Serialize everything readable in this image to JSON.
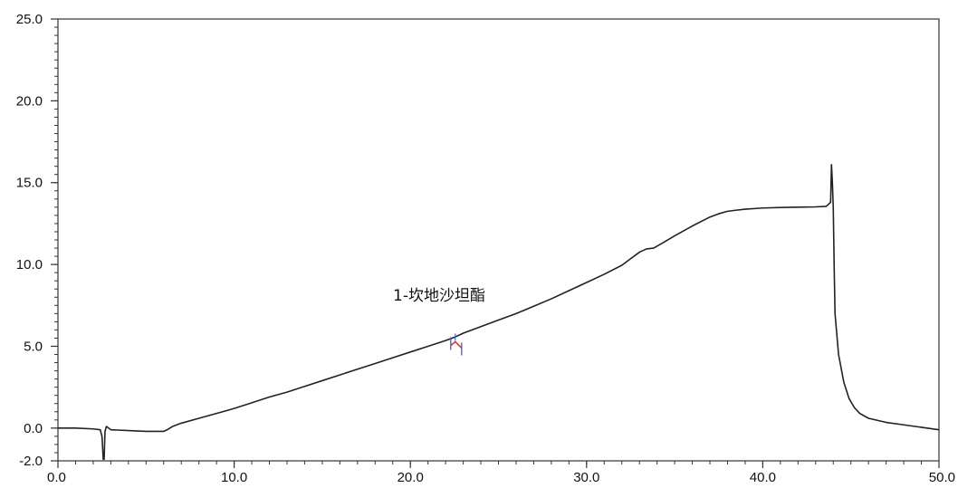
{
  "chart_data": {
    "type": "line",
    "title": "",
    "xlabel": "",
    "ylabel": "",
    "xlim": [
      0,
      50
    ],
    "ylim": [
      -2,
      25
    ],
    "grid": false,
    "x_ticks": [
      "0.0",
      "10.0",
      "20.0",
      "30.0",
      "40.0",
      "50.0"
    ],
    "y_ticks": [
      "-2.0",
      "0.0",
      "5.0",
      "10.0",
      "15.0",
      "20.0",
      "25.0"
    ],
    "annotations": [
      {
        "text": "1-坎地沙坦酯",
        "x": 22.6,
        "y": 5.0
      }
    ],
    "series": [
      {
        "color": "#222222",
        "x": [
          0.0,
          1.0,
          2.0,
          2.4,
          2.5,
          2.57,
          2.62,
          2.67,
          2.75,
          3.0,
          4.0,
          5.0,
          6.0,
          6.2,
          6.5,
          7.0,
          8.0,
          9.0,
          10.0,
          11.0,
          12.0,
          13.0,
          14.0,
          15.0,
          16.0,
          17.0,
          18.0,
          19.0,
          20.0,
          21.0,
          22.0,
          22.5,
          23.0,
          24.0,
          25.0,
          26.0,
          27.0,
          28.0,
          29.0,
          30.0,
          31.0,
          32.0,
          32.5,
          33.0,
          33.4,
          33.8,
          34.3,
          35.0,
          36.0,
          37.0,
          37.5,
          38.0,
          38.5,
          39.0,
          40.0,
          41.0,
          42.0,
          43.0,
          43.6,
          43.85,
          43.9,
          43.95,
          44.0,
          44.05,
          44.1,
          44.3,
          44.6,
          44.9,
          45.2,
          45.5,
          46.0,
          47.0,
          48.0,
          49.0,
          50.0
        ],
        "values": [
          0.0,
          0.0,
          -0.05,
          -0.1,
          -0.5,
          -1.9,
          -1.9,
          -0.2,
          0.1,
          -0.1,
          -0.15,
          -0.2,
          -0.2,
          -0.1,
          0.1,
          0.3,
          0.6,
          0.9,
          1.2,
          1.55,
          1.9,
          2.2,
          2.55,
          2.9,
          3.25,
          3.6,
          3.95,
          4.3,
          4.65,
          5.0,
          5.35,
          5.55,
          5.8,
          6.2,
          6.6,
          7.0,
          7.45,
          7.9,
          8.4,
          8.9,
          9.4,
          9.95,
          10.35,
          10.75,
          10.95,
          11.0,
          11.3,
          11.75,
          12.35,
          12.9,
          13.1,
          13.25,
          13.32,
          13.38,
          13.45,
          13.48,
          13.5,
          13.52,
          13.55,
          13.8,
          16.1,
          15.0,
          13.5,
          10.0,
          7.0,
          4.5,
          2.8,
          1.8,
          1.25,
          0.9,
          0.6,
          0.35,
          0.2,
          0.05,
          -0.1
        ]
      }
    ]
  }
}
